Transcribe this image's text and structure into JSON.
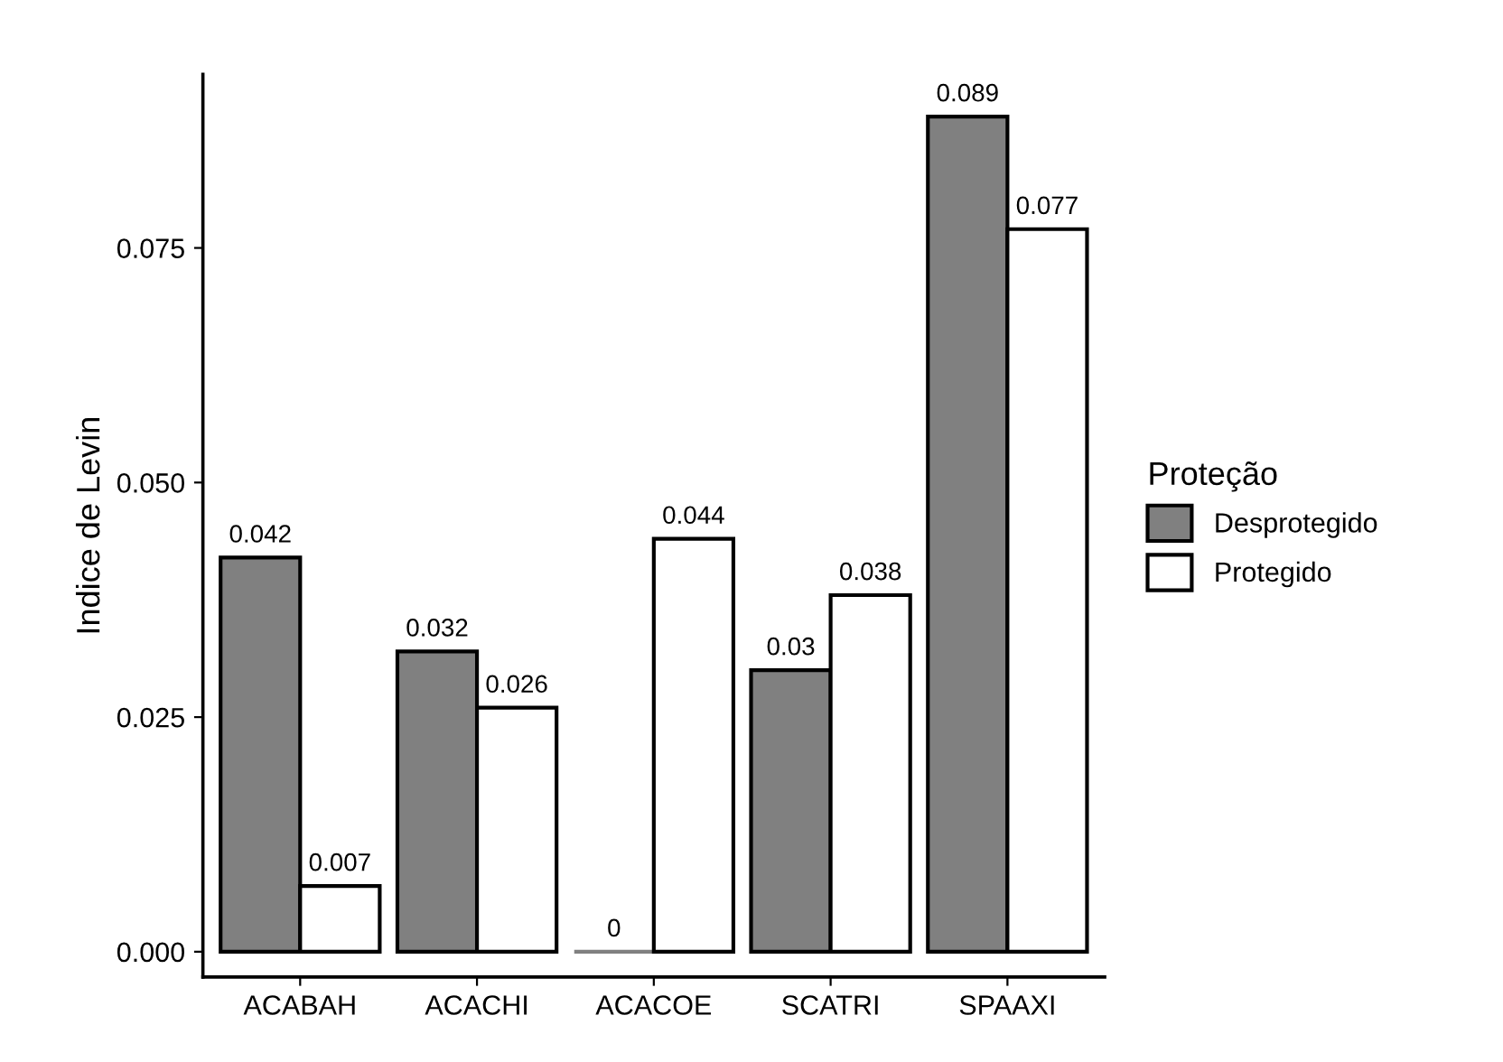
{
  "chart_data": {
    "type": "bar",
    "ylabel": "Indice de Levin",
    "legend_title": "Proteção",
    "legend": "right",
    "grid": false,
    "data_labels": true,
    "categories": [
      "ACABAH",
      "ACACHI",
      "ACACOE",
      "SCATRI",
      "SPAAXI"
    ],
    "series": [
      {
        "name": "Desprotegido",
        "color": "#808080",
        "values": [
          0.042,
          0.032,
          0,
          0.03,
          0.089
        ]
      },
      {
        "name": "Protegido",
        "color": "#ffffff",
        "values": [
          0.007,
          0.026,
          0.044,
          0.038,
          0.077
        ]
      }
    ],
    "ylim": [
      -0.0027,
      0.0935
    ],
    "yticks": [
      {
        "value": 0,
        "label": "0.000"
      },
      {
        "value": 0.025,
        "label": "0.025"
      },
      {
        "value": 0.05,
        "label": "0.050"
      },
      {
        "value": 0.075,
        "label": "0.075"
      }
    ]
  }
}
